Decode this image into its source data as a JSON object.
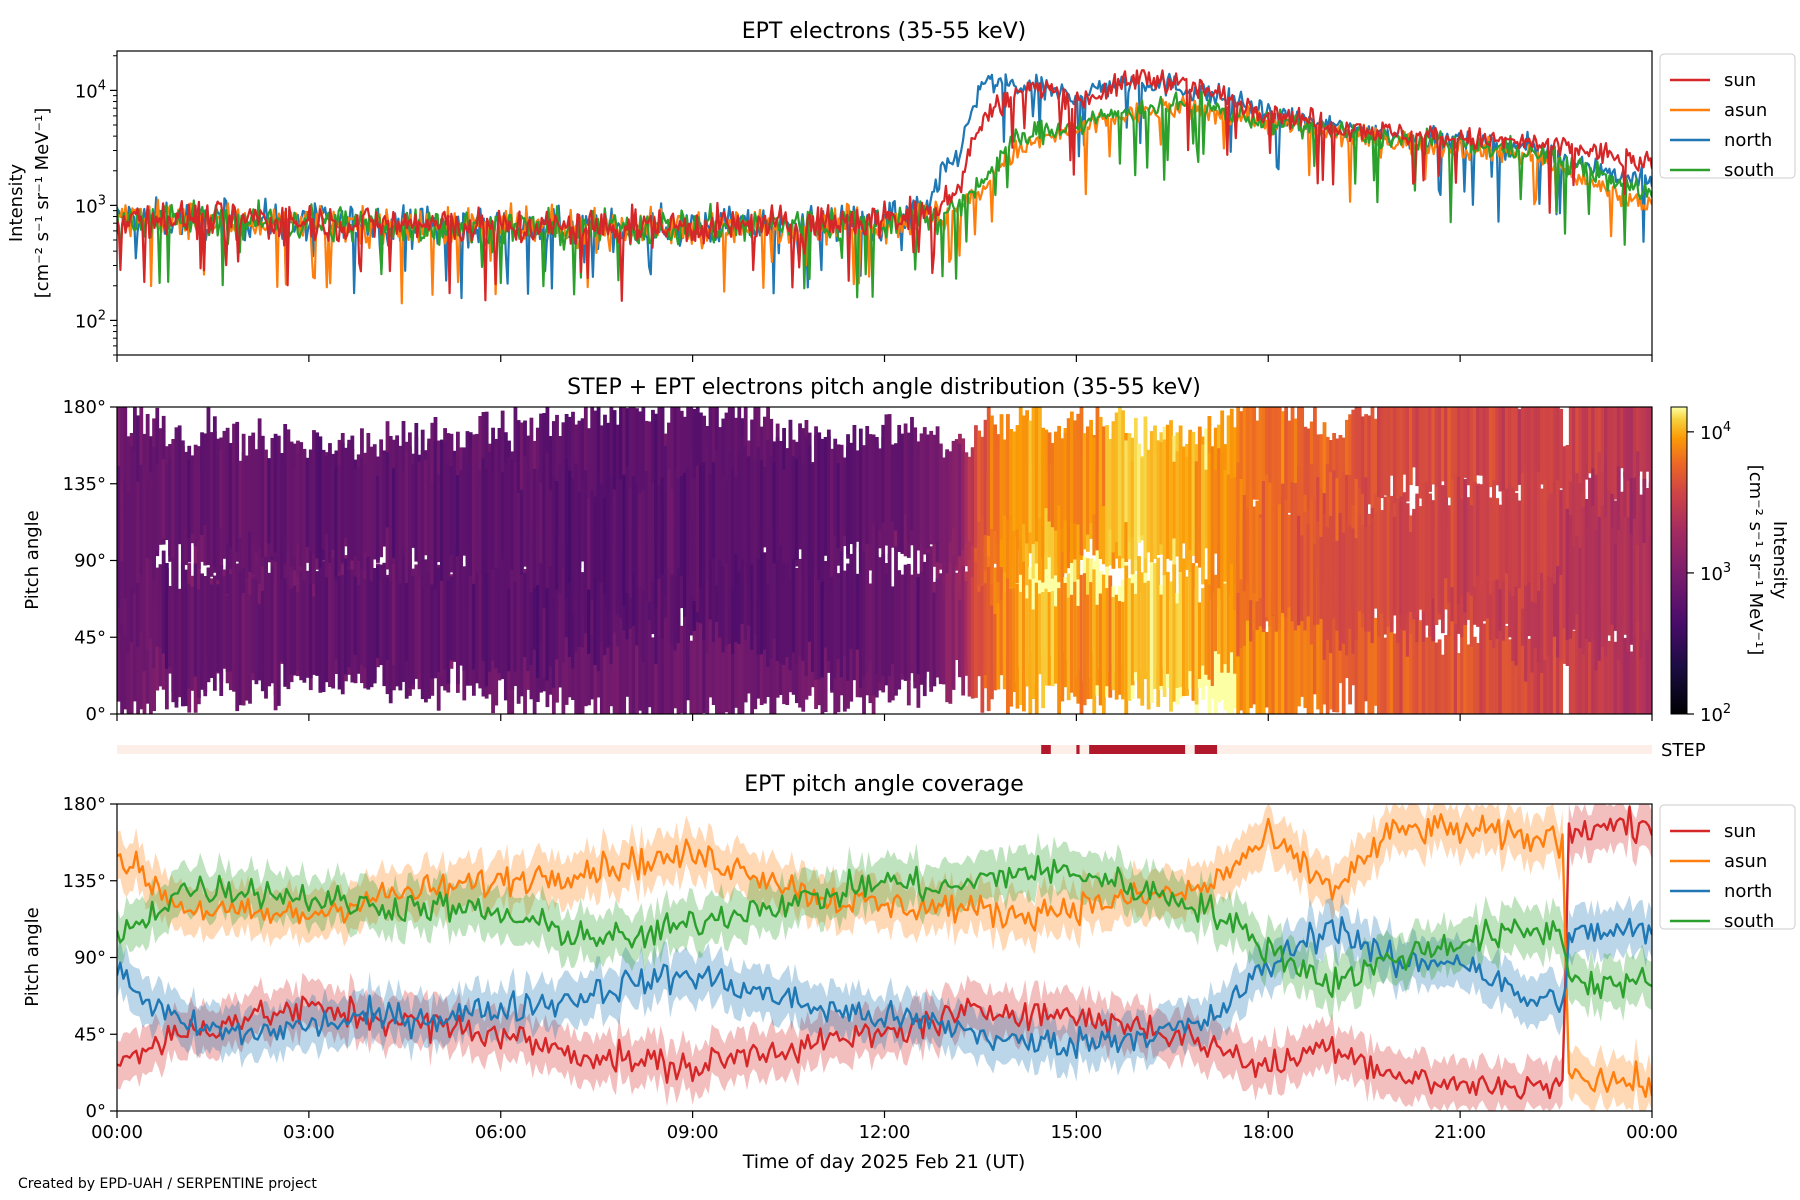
{
  "credit": "Created by EPD-UAH / SERPENTINE project",
  "chart_data": [
    {
      "id": "intensity",
      "type": "line",
      "title": "EPT electrons (35-55 keV)",
      "ylabel_line1": "Intensity",
      "ylabel_line2": "[cm⁻² s⁻¹ sr⁻¹ MeV⁻¹]",
      "yscale": "log",
      "ylim": [
        50,
        22000
      ],
      "xlim": [
        0,
        24
      ],
      "yticks": [
        {
          "value": 100,
          "base": "10",
          "exp": "2"
        },
        {
          "value": 1000,
          "base": "10",
          "exp": "3"
        },
        {
          "value": 10000,
          "base": "10",
          "exp": "4"
        }
      ],
      "legend": "outside upper right",
      "series": [
        {
          "name": "sun",
          "color": "#d62728",
          "x": [
            0,
            1,
            2,
            3,
            4,
            5,
            6,
            7,
            8,
            9,
            10,
            11,
            12,
            12.7,
            13.2,
            13.6,
            14.0,
            14.5,
            15,
            15.5,
            16,
            16.5,
            17,
            17.5,
            18,
            19,
            20,
            21,
            22,
            23,
            23.5,
            24
          ],
          "y": [
            800,
            780,
            760,
            720,
            700,
            680,
            650,
            640,
            650,
            660,
            670,
            700,
            750,
            850,
            1500,
            6000,
            9000,
            11000,
            8000,
            10000,
            13000,
            12000,
            10000,
            8000,
            6500,
            5000,
            4200,
            3800,
            3500,
            3000,
            2600,
            2200
          ]
        },
        {
          "name": "asun",
          "color": "#ff7f0e",
          "x": [
            0,
            1,
            2,
            3,
            4,
            5,
            6,
            7,
            8,
            9,
            10,
            11,
            12,
            12.7,
            13.2,
            13.6,
            14.0,
            14.5,
            15,
            15.5,
            16,
            16.5,
            17,
            17.5,
            18,
            19,
            20,
            21,
            22,
            23,
            23.5,
            24
          ],
          "y": [
            760,
            740,
            720,
            700,
            680,
            650,
            630,
            620,
            630,
            640,
            650,
            680,
            720,
            780,
            900,
            1500,
            2800,
            3800,
            4500,
            5500,
            6500,
            7000,
            6500,
            6000,
            5200,
            4200,
            3600,
            3200,
            2800,
            1600,
            1200,
            1000
          ]
        },
        {
          "name": "north",
          "color": "#1f77b4",
          "x": [
            0,
            1,
            2,
            3,
            4,
            5,
            6,
            7,
            8,
            9,
            10,
            11,
            12,
            12.7,
            13.2,
            13.6,
            14.0,
            14.5,
            15,
            15.5,
            16,
            16.5,
            17,
            17.5,
            18,
            19,
            20,
            21,
            22,
            23,
            23.5,
            24
          ],
          "y": [
            780,
            760,
            740,
            710,
            690,
            670,
            640,
            630,
            640,
            650,
            660,
            690,
            740,
            900,
            3000,
            12000,
            11000,
            10000,
            9000,
            11000,
            12000,
            11000,
            9500,
            8000,
            6000,
            4800,
            4000,
            3600,
            3200,
            2200,
            1800,
            1600
          ]
        },
        {
          "name": "south",
          "color": "#2ca02c",
          "x": [
            0,
            1,
            2,
            3,
            4,
            5,
            6,
            7,
            8,
            9,
            10,
            11,
            12,
            12.7,
            13.2,
            13.6,
            14.0,
            14.5,
            15,
            15.5,
            16,
            16.5,
            17,
            17.5,
            18,
            19,
            20,
            21,
            22,
            23,
            23.5,
            24
          ],
          "y": [
            770,
            750,
            730,
            700,
            685,
            660,
            640,
            625,
            635,
            645,
            655,
            685,
            730,
            800,
            950,
            1800,
            3500,
            4500,
            5000,
            6000,
            7000,
            7500,
            7000,
            6200,
            5400,
            4400,
            3800,
            3400,
            3000,
            2000,
            1500,
            1300
          ]
        }
      ]
    },
    {
      "id": "pad",
      "type": "heatmap",
      "title": "STEP + EPT electrons pitch angle distribution (35-55 keV)",
      "ylabel": "Pitch angle",
      "ylim": [
        0,
        180
      ],
      "xlim": [
        0,
        24
      ],
      "yticks": [
        "0°",
        "45°",
        "90°",
        "135°",
        "180°"
      ],
      "colormap": "inferno",
      "colorbar": {
        "label": "Intensity",
        "unit": "[cm⁻² s⁻¹ sr⁻¹ MeV⁻¹]",
        "scale": "log",
        "range": [
          100,
          15000
        ],
        "ticks": [
          {
            "value": 100,
            "base": "10",
            "exp": "2"
          },
          {
            "value": 1000,
            "base": "10",
            "exp": "3"
          },
          {
            "value": 10000,
            "base": "10",
            "exp": "4"
          }
        ]
      }
    },
    {
      "id": "step",
      "type": "bar",
      "label": "STEP",
      "active_intervals": [
        [
          14.45,
          14.6
        ],
        [
          15.0,
          15.05
        ],
        [
          15.2,
          16.7
        ],
        [
          16.85,
          17.2
        ]
      ],
      "active_color": "#b2182b",
      "inactive_color": "#fdeee8"
    },
    {
      "id": "coverage",
      "type": "line",
      "title": "EPT pitch angle coverage",
      "ylabel": "Pitch angle",
      "xlabel": "Time of day 2025 Feb 21 (UT)",
      "ylim": [
        0,
        180
      ],
      "xlim": [
        0,
        24
      ],
      "yticks": [
        "0°",
        "45°",
        "90°",
        "135°",
        "180°"
      ],
      "xticks": [
        "00:00",
        "03:00",
        "06:00",
        "09:00",
        "12:00",
        "15:00",
        "18:00",
        "21:00",
        "00:00"
      ],
      "legend": "outside upper right",
      "series": [
        {
          "name": "sun",
          "color": "#d62728",
          "x": [
            0,
            1,
            2,
            3,
            4,
            5,
            6,
            7,
            8,
            9,
            10,
            11,
            12,
            13,
            14,
            15,
            16,
            17,
            18,
            19,
            20,
            21,
            22,
            22.6,
            22.7,
            23,
            24
          ],
          "y": [
            30,
            45,
            55,
            60,
            55,
            50,
            45,
            35,
            30,
            25,
            35,
            40,
            45,
            55,
            60,
            55,
            50,
            40,
            25,
            40,
            20,
            15,
            15,
            15,
            160,
            165,
            170
          ]
        },
        {
          "name": "asun",
          "color": "#ff7f0e",
          "x": [
            0,
            1,
            2,
            3,
            4,
            5,
            6,
            7,
            8,
            9,
            10,
            11,
            12,
            13,
            14,
            15,
            16,
            17,
            18,
            19,
            20,
            21,
            22,
            22.6,
            22.7,
            23,
            24
          ],
          "y": [
            150,
            120,
            115,
            115,
            125,
            130,
            135,
            140,
            145,
            150,
            140,
            125,
            120,
            120,
            115,
            120,
            125,
            130,
            160,
            130,
            165,
            165,
            160,
            160,
            25,
            20,
            15
          ]
        },
        {
          "name": "north",
          "color": "#1f77b4",
          "x": [
            0,
            1,
            2,
            3,
            4,
            5,
            6,
            7,
            8,
            9,
            10,
            11,
            12,
            13,
            14,
            15,
            16,
            17,
            18,
            19,
            20,
            21,
            22,
            22.6,
            22.7,
            23,
            24
          ],
          "y": [
            80,
            50,
            45,
            50,
            55,
            55,
            60,
            65,
            75,
            80,
            70,
            60,
            55,
            50,
            40,
            40,
            45,
            50,
            85,
            110,
            85,
            90,
            65,
            65,
            100,
            105,
            105
          ]
        },
        {
          "name": "south",
          "color": "#2ca02c",
          "x": [
            0,
            1,
            2,
            3,
            4,
            5,
            6,
            7,
            8,
            9,
            10,
            11,
            12,
            13,
            14,
            15,
            16,
            17,
            18,
            19,
            20,
            21,
            22,
            22.6,
            22.7,
            23,
            24
          ],
          "y": [
            100,
            130,
            130,
            125,
            120,
            120,
            115,
            105,
            100,
            110,
            120,
            125,
            135,
            130,
            140,
            140,
            130,
            120,
            95,
            75,
            90,
            100,
            105,
            105,
            80,
            75,
            75
          ]
        }
      ]
    }
  ]
}
